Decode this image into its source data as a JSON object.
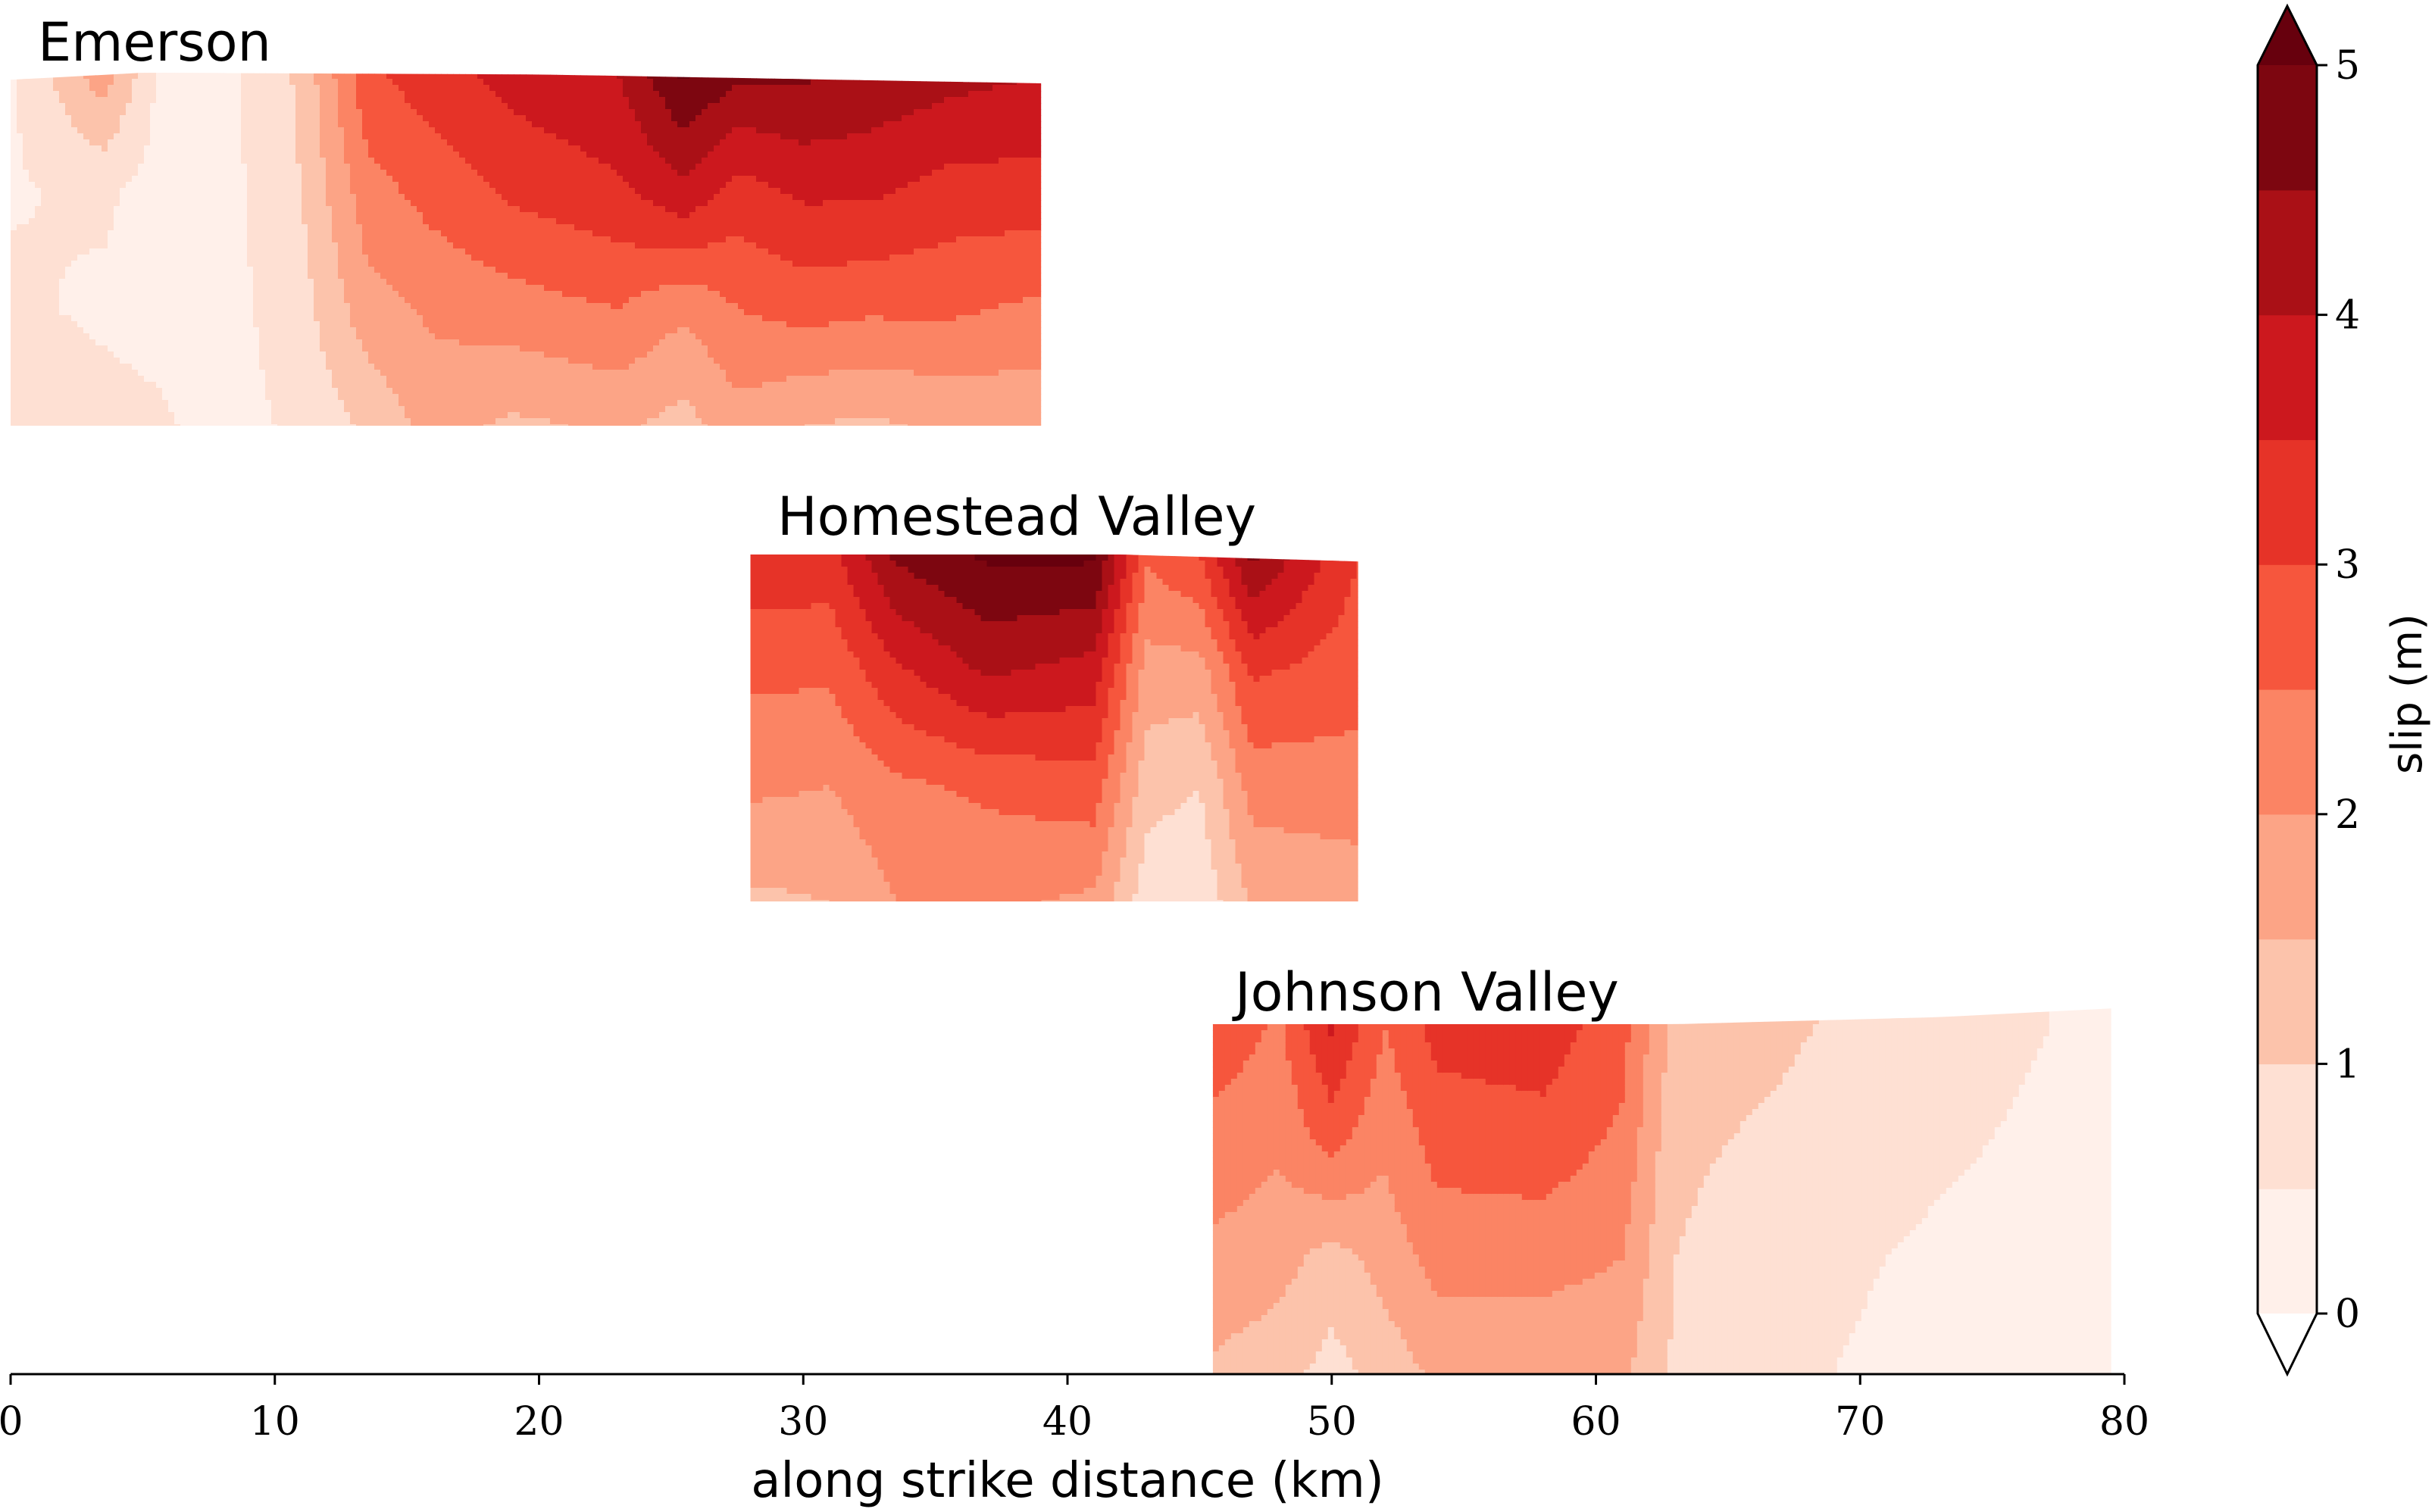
{
  "chart_data": {
    "type": "heatmap",
    "xlabel": "along strike distance (km)",
    "xlim": [
      0,
      80
    ],
    "x_ticks": [
      "0",
      "10",
      "20",
      "30",
      "40",
      "50",
      "60",
      "70",
      "80"
    ],
    "colorbar": {
      "label": "slip (m)",
      "levels": [
        0,
        0.5,
        1,
        1.5,
        2,
        2.5,
        3,
        3.5,
        4,
        4.5,
        5
      ],
      "ticks": [
        "0",
        "1",
        "2",
        "3",
        "4",
        "5"
      ],
      "colors": [
        "#fff0ea",
        "#fee0d3",
        "#fcc3ab",
        "#fca486",
        "#fb8464",
        "#f6563d",
        "#e63328",
        "#cc181e",
        "#aa1016",
        "#7d0610"
      ],
      "extend": "both",
      "over_color": "#67000d",
      "under_color": "#ffffff"
    },
    "panels": [
      {
        "name": "Emerson",
        "x_range": [
          0,
          39
        ],
        "top_surface": [
          [
            0,
            0.02
          ],
          [
            5,
            0
          ],
          [
            20,
            0.005
          ],
          [
            39,
            0.03
          ]
        ],
        "columns": [
          {
            "x": 0,
            "slip": [
              0.4,
              0.45,
              0.6,
              0.9
            ]
          },
          {
            "x": 3.5,
            "slip": [
              1.8,
              0.6,
              0.4,
              0.7
            ]
          },
          {
            "x": 5.5,
            "slip": [
              0.5,
              0.3,
              0.3,
              0.6
            ]
          },
          {
            "x": 8,
            "slip": [
              0.3,
              0.3,
              0.3,
              0.3
            ]
          },
          {
            "x": 11,
            "slip": [
              1.1,
              1.0,
              0.8,
              0.6
            ]
          },
          {
            "x": 13.5,
            "slip": [
              2.9,
              2.3,
              1.8,
              1.1
            ]
          },
          {
            "x": 16,
            "slip": [
              3.3,
              2.7,
              2.1,
              1.7
            ]
          },
          {
            "x": 19,
            "slip": [
              3.7,
              3.1,
              2.3,
              1.4
            ]
          },
          {
            "x": 23,
            "slip": [
              4.0,
              3.4,
              2.5,
              1.6
            ]
          },
          {
            "x": 25.5,
            "slip": [
              5.1,
              3.9,
              2.1,
              1.3
            ]
          },
          {
            "x": 27.5,
            "slip": [
              4.6,
              3.3,
              2.5,
              1.8
            ]
          },
          {
            "x": 30,
            "slip": [
              4.6,
              3.6,
              2.7,
              1.5
            ]
          },
          {
            "x": 32.5,
            "slip": [
              4.4,
              3.6,
              2.6,
              1.4
            ]
          },
          {
            "x": 35.5,
            "slip": [
              4.2,
              3.3,
              2.6,
              1.6
            ]
          },
          {
            "x": 39,
            "slip": [
              4.0,
              3.3,
              2.4,
              1.6
            ]
          }
        ]
      },
      {
        "name": "Homestead Valley",
        "x_range": [
          28,
          51
        ],
        "top_surface": [
          [
            28,
            0
          ],
          [
            42,
            0
          ],
          [
            51,
            0.02
          ]
        ],
        "columns": [
          {
            "x": 28,
            "slip": [
              3.4,
              2.6,
              2.1,
              1.4
            ]
          },
          {
            "x": 31,
            "slip": [
              3.3,
              2.6,
              2.0,
              1.5
            ]
          },
          {
            "x": 33.5,
            "slip": [
              4.6,
              3.4,
              2.4,
              2.0
            ]
          },
          {
            "x": 37,
            "slip": [
              5.1,
              4.1,
              2.6,
              2.1
            ]
          },
          {
            "x": 41,
            "slip": [
              5.1,
              3.8,
              2.8,
              1.9
            ]
          },
          {
            "x": 43,
            "slip": [
              2.6,
              1.8,
              1.2,
              0.7
            ]
          },
          {
            "x": 45,
            "slip": [
              3.0,
              1.8,
              1.0,
              0.6
            ]
          },
          {
            "x": 47,
            "slip": [
              4.6,
              3.1,
              2.2,
              1.6
            ]
          },
          {
            "x": 51,
            "slip": [
              3.0,
              2.7,
              2.3,
              1.7
            ]
          }
        ]
      },
      {
        "name": "Johnson Valley",
        "x_range": [
          45.5,
          79.5
        ],
        "top_surface": [
          [
            45.5,
            0
          ],
          [
            63,
            0
          ],
          [
            73,
            -0.02
          ],
          [
            79.5,
            -0.045
          ]
        ],
        "columns": [
          {
            "x": 45.5,
            "slip": [
              2.9,
              2.3,
              1.9,
              1.4
            ]
          },
          {
            "x": 48,
            "slip": [
              2.4,
              2.1,
              1.7,
              1.2
            ]
          },
          {
            "x": 50,
            "slip": [
              3.6,
              2.7,
              1.3,
              0.8
            ]
          },
          {
            "x": 52,
            "slip": [
              2.5,
              2.1,
              1.7,
              1.2
            ]
          },
          {
            "x": 54,
            "slip": [
              3.2,
              2.7,
              2.2,
              1.6
            ]
          },
          {
            "x": 58,
            "slip": [
              3.3,
              2.8,
              2.2,
              1.6
            ]
          },
          {
            "x": 61,
            "slip": [
              2.7,
              2.4,
              2.0,
              1.6
            ]
          },
          {
            "x": 63,
            "slip": [
              1.3,
              1.1,
              1.0,
              0.9
            ]
          },
          {
            "x": 67,
            "slip": [
              1.1,
              0.9,
              0.7,
              0.6
            ]
          },
          {
            "x": 71,
            "slip": [
              0.8,
              0.6,
              0.5,
              0.4
            ]
          },
          {
            "x": 75,
            "slip": [
              0.6,
              0.5,
              0.4,
              0.4
            ]
          },
          {
            "x": 79.5,
            "slip": [
              0.4,
              0.3,
              0.35,
              0.4
            ]
          }
        ]
      }
    ]
  }
}
